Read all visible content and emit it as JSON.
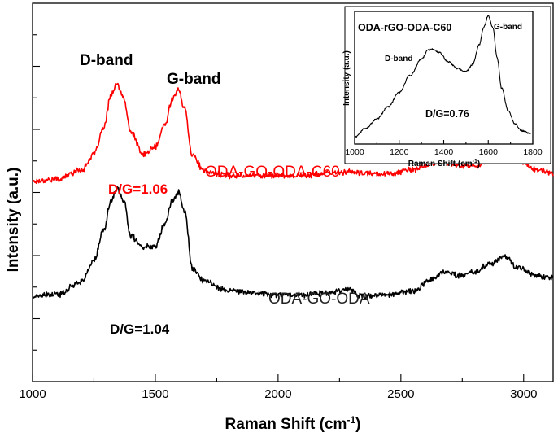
{
  "chart_data": [
    {
      "type": "line",
      "name": "main",
      "xlabel": "Raman Shift (cm",
      "xlabel_sup": "-1",
      "xlabel_close": ")",
      "ylabel": "Intensity (a.u.)",
      "xlim": [
        1000,
        3120
      ],
      "ylim": [
        0,
        1
      ],
      "x_ticks": [
        1000,
        1500,
        2000,
        2500,
        3000
      ],
      "y_ticks_shown": false,
      "annotations": [
        "D-band",
        "G-band"
      ],
      "series": [
        {
          "name": "ODA-GO-ODA-C60",
          "color": "#ff0000",
          "ratio_label": "D/G=1.06",
          "x": [
            1000,
            1100,
            1200,
            1250,
            1290,
            1320,
            1345,
            1370,
            1400,
            1450,
            1500,
            1540,
            1570,
            1595,
            1620,
            1650,
            1700,
            1800,
            1900,
            2000,
            2100,
            2200,
            2280,
            2350,
            2450,
            2550,
            2620,
            2680,
            2740,
            2800,
            2860,
            2920,
            2980,
            3050,
            3120
          ],
          "y": [
            0.53,
            0.535,
            0.56,
            0.6,
            0.67,
            0.76,
            0.785,
            0.75,
            0.66,
            0.6,
            0.62,
            0.68,
            0.75,
            0.77,
            0.72,
            0.6,
            0.555,
            0.545,
            0.545,
            0.545,
            0.545,
            0.55,
            0.555,
            0.55,
            0.55,
            0.56,
            0.575,
            0.58,
            0.57,
            0.57,
            0.585,
            0.605,
            0.585,
            0.56,
            0.55
          ]
        },
        {
          "name": "ODA-GO-ODA",
          "color": "#000000",
          "ratio_label": "D/G=1.04",
          "x": [
            1000,
            1100,
            1200,
            1250,
            1290,
            1320,
            1345,
            1370,
            1400,
            1450,
            1500,
            1540,
            1570,
            1595,
            1620,
            1650,
            1700,
            1800,
            1900,
            2000,
            2100,
            2200,
            2280,
            2350,
            2450,
            2550,
            2620,
            2680,
            2740,
            2800,
            2860,
            2920,
            2980,
            3050,
            3120
          ],
          "y": [
            0.225,
            0.23,
            0.265,
            0.32,
            0.4,
            0.48,
            0.51,
            0.48,
            0.385,
            0.355,
            0.36,
            0.42,
            0.48,
            0.5,
            0.45,
            0.3,
            0.265,
            0.24,
            0.235,
            0.23,
            0.23,
            0.235,
            0.245,
            0.225,
            0.23,
            0.24,
            0.27,
            0.29,
            0.28,
            0.29,
            0.31,
            0.33,
            0.3,
            0.28,
            0.275
          ]
        }
      ]
    },
    {
      "type": "line",
      "name": "inset",
      "title": "ODA-rGO-ODA-C60",
      "xlabel": "Raman Shift (cm",
      "xlabel_sup": "-1",
      "xlabel_close": ")",
      "ylabel": "Intensity (a.u.)",
      "xlim": [
        1000,
        1800
      ],
      "ylim": [
        0,
        1
      ],
      "x_ticks": [
        1000,
        1200,
        1400,
        1600,
        1800
      ],
      "annotations": [
        "D-band",
        "G-band"
      ],
      "ratio_label": "D/G=0.76",
      "series": [
        {
          "name": "ODA-rGO-ODA-C60",
          "color": "#000000",
          "x": [
            1000,
            1050,
            1100,
            1150,
            1200,
            1250,
            1300,
            1330,
            1350,
            1380,
            1420,
            1460,
            1500,
            1530,
            1560,
            1580,
            1600,
            1620,
            1640,
            1660,
            1690,
            1720,
            1750,
            1790
          ],
          "y": [
            0.05,
            0.12,
            0.19,
            0.28,
            0.39,
            0.52,
            0.64,
            0.71,
            0.715,
            0.69,
            0.62,
            0.57,
            0.545,
            0.6,
            0.75,
            0.88,
            0.97,
            0.88,
            0.65,
            0.42,
            0.25,
            0.15,
            0.1,
            0.08
          ]
        }
      ]
    }
  ]
}
